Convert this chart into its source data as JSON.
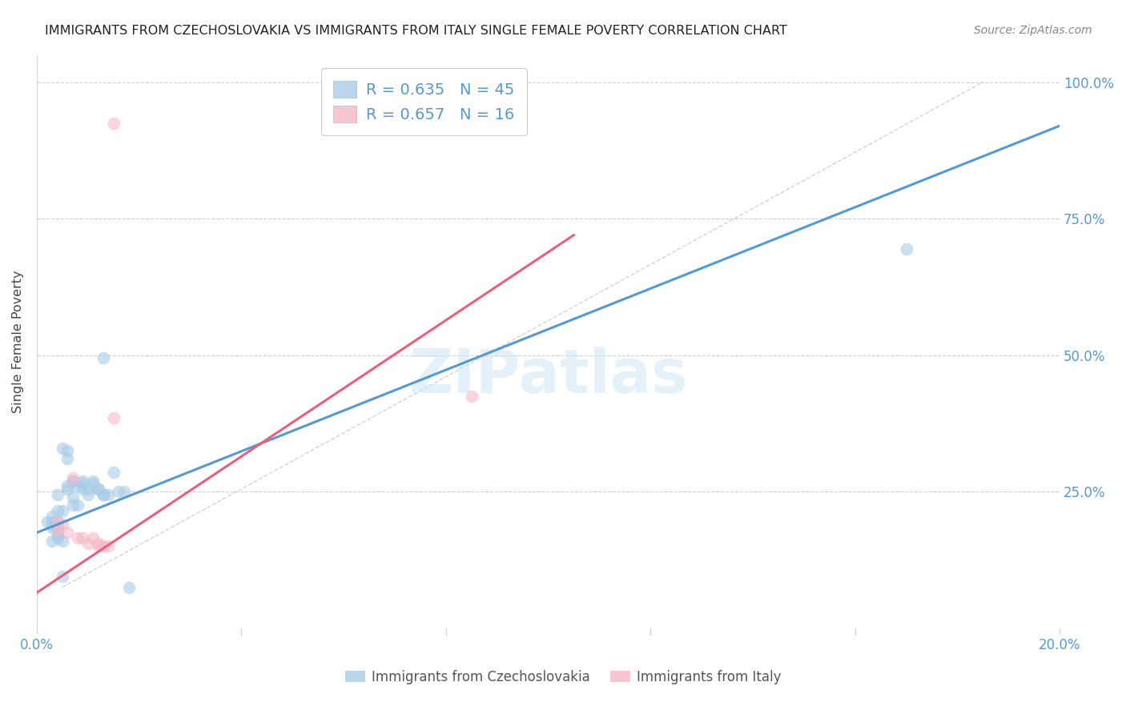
{
  "title": "IMMIGRANTS FROM CZECHOSLOVAKIA VS IMMIGRANTS FROM ITALY SINGLE FEMALE POVERTY CORRELATION CHART",
  "source": "Source: ZipAtlas.com",
  "ylabel": "Single Female Poverty",
  "legend_blue": {
    "R": "0.635",
    "N": "45",
    "label": "Immigrants from Czechoslovakia"
  },
  "legend_pink": {
    "R": "0.657",
    "N": "16",
    "label": "Immigrants from Italy"
  },
  "blue_color": "#a8cce8",
  "blue_line_color": "#5599d0",
  "pink_color": "#f7b8c8",
  "pink_line_color": "#e8607a",
  "blue_scatter": [
    [
      0.002,
      0.195
    ],
    [
      0.003,
      0.195
    ],
    [
      0.003,
      0.185
    ],
    [
      0.004,
      0.175
    ],
    [
      0.004,
      0.195
    ],
    [
      0.003,
      0.205
    ],
    [
      0.005,
      0.215
    ],
    [
      0.003,
      0.19
    ],
    [
      0.006,
      0.255
    ],
    [
      0.006,
      0.26
    ],
    [
      0.004,
      0.185
    ],
    [
      0.004,
      0.215
    ],
    [
      0.006,
      0.325
    ],
    [
      0.006,
      0.31
    ],
    [
      0.005,
      0.33
    ],
    [
      0.007,
      0.27
    ],
    [
      0.007,
      0.27
    ],
    [
      0.003,
      0.16
    ],
    [
      0.004,
      0.165
    ],
    [
      0.004,
      0.17
    ],
    [
      0.005,
      0.16
    ],
    [
      0.007,
      0.24
    ],
    [
      0.007,
      0.225
    ],
    [
      0.008,
      0.225
    ],
    [
      0.008,
      0.26
    ],
    [
      0.009,
      0.27
    ],
    [
      0.009,
      0.255
    ],
    [
      0.009,
      0.265
    ],
    [
      0.01,
      0.245
    ],
    [
      0.01,
      0.255
    ],
    [
      0.011,
      0.27
    ],
    [
      0.011,
      0.265
    ],
    [
      0.012,
      0.255
    ],
    [
      0.012,
      0.255
    ],
    [
      0.013,
      0.245
    ],
    [
      0.013,
      0.245
    ],
    [
      0.014,
      0.245
    ],
    [
      0.015,
      0.285
    ],
    [
      0.013,
      0.495
    ],
    [
      0.016,
      0.25
    ],
    [
      0.017,
      0.25
    ],
    [
      0.018,
      0.075
    ],
    [
      0.005,
      0.095
    ],
    [
      0.17,
      0.695
    ],
    [
      0.004,
      0.245
    ]
  ],
  "pink_scatter": [
    [
      0.004,
      0.195
    ],
    [
      0.005,
      0.19
    ],
    [
      0.004,
      0.18
    ],
    [
      0.006,
      0.175
    ],
    [
      0.007,
      0.275
    ],
    [
      0.008,
      0.165
    ],
    [
      0.009,
      0.165
    ],
    [
      0.01,
      0.155
    ],
    [
      0.011,
      0.165
    ],
    [
      0.012,
      0.155
    ],
    [
      0.012,
      0.15
    ],
    [
      0.013,
      0.15
    ],
    [
      0.014,
      0.15
    ],
    [
      0.015,
      0.925
    ],
    [
      0.015,
      0.385
    ],
    [
      0.085,
      0.425
    ]
  ],
  "blue_line": [
    [
      0.0,
      0.175
    ],
    [
      0.2,
      0.92
    ]
  ],
  "pink_line": [
    [
      0.0,
      0.065
    ],
    [
      0.105,
      0.72
    ]
  ],
  "diag_line": [
    [
      0.005,
      0.075
    ],
    [
      0.185,
      1.0
    ]
  ],
  "xlim": [
    0.0,
    0.2
  ],
  "ylim": [
    0.0,
    1.05
  ],
  "xticks": [
    0.0,
    0.04,
    0.08,
    0.12,
    0.16,
    0.2
  ],
  "ytick_positions": [
    0.0,
    0.25,
    0.5,
    0.75,
    1.0
  ],
  "ytick_labels_right": [
    "",
    "25.0%",
    "50.0%",
    "75.0%",
    "100.0%"
  ],
  "watermark": "ZIPatlas",
  "background_color": "#ffffff",
  "grid_color": "#d0d0d0",
  "tick_label_color": "#5599d0",
  "axis_label_color": "#444444"
}
